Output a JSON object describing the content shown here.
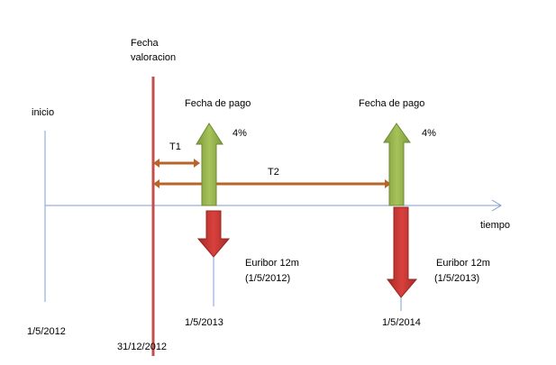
{
  "diagram": {
    "start": {
      "label": "inicio",
      "date": "1/5/2012"
    },
    "valuation": {
      "label_line1": "Fecha",
      "label_line2": "valoracion",
      "date": "31/12/2012"
    },
    "time_axis": {
      "label": "tiempo"
    },
    "periods": [
      {
        "label": "T1"
      },
      {
        "label": "T2"
      }
    ],
    "payments": [
      {
        "title": "Fecha de pago",
        "rate": "4%",
        "floating_line1": "Euribor 12m",
        "floating_line2": "(1/5/2012)",
        "date": "1/5/2013"
      },
      {
        "title": "Fecha de pago",
        "rate": "4%",
        "floating_line1": "Euribor 12m",
        "floating_line2": "(1/5/2013)",
        "date": "1/5/2014"
      }
    ]
  }
}
